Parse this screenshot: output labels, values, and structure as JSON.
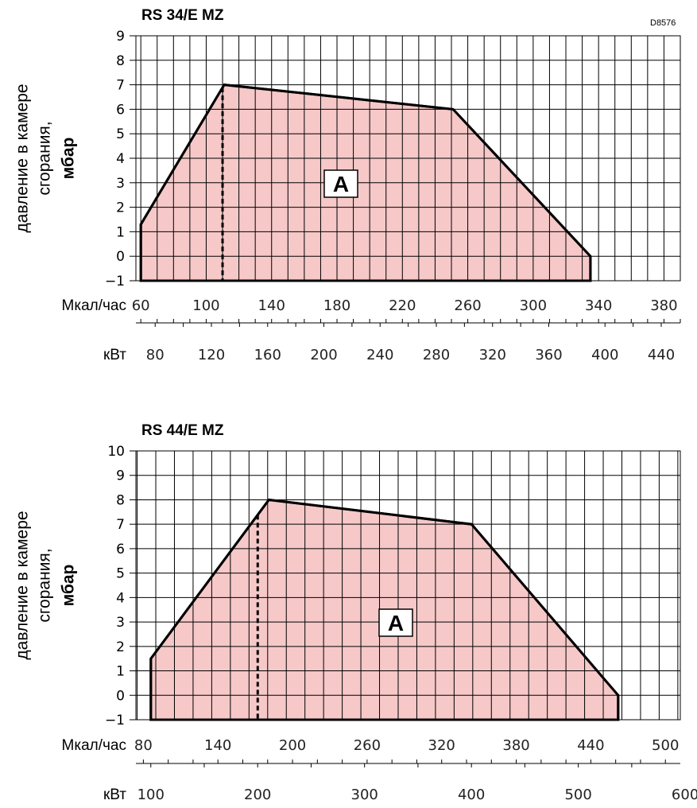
{
  "code": "D8576",
  "chart_data": [
    {
      "type": "area",
      "title": "RS 34/E MZ",
      "ylabel_lines": [
        "давление в камере",
        "сгорания,"
      ],
      "ylabel_bold": "мбар",
      "ylim": [
        -1,
        9
      ],
      "yticks": [
        "9",
        "8",
        "7",
        "6",
        "5",
        "4",
        "3",
        "2",
        "1",
        "0",
        "−1"
      ],
      "x_unit_top": "Мкал/час",
      "x_unit_bottom": "кВт",
      "xlim_mcal": [
        57,
        390
      ],
      "xticks_mcal": [
        60,
        100,
        140,
        180,
        220,
        260,
        300,
        340,
        380
      ],
      "xticks_kw": [
        80,
        120,
        160,
        200,
        240,
        280,
        320,
        360,
        400,
        440
      ],
      "series": [
        {
          "x": [
            60,
            60,
            111,
            251,
            335,
            335
          ],
          "y": [
            -1,
            1.3,
            7,
            6,
            0,
            -1
          ]
        }
      ],
      "dashed_x": 110,
      "region_label": "A",
      "grid": true
    },
    {
      "type": "area",
      "title": "RS 44/E MZ",
      "ylabel_lines": [
        "давление в камере",
        "сгорания,"
      ],
      "ylabel_bold": "мбар",
      "ylim": [
        -1,
        10
      ],
      "yticks": [
        "10",
        "9",
        "8",
        "7",
        "6",
        "5",
        "4",
        "3",
        "2",
        "1",
        "0",
        "−1"
      ],
      "x_unit_top": "Мкал/час",
      "x_unit_bottom": "кВт",
      "xlim_mcal": [
        74,
        512
      ],
      "xticks_mcal": [
        80,
        140,
        200,
        260,
        320,
        380,
        440,
        500
      ],
      "xticks_kw": [
        100,
        200,
        300,
        400,
        500,
        600
      ],
      "series": [
        {
          "x": [
            86,
            86,
            181,
            344,
            462,
            462
          ],
          "y": [
            -1,
            1.5,
            8,
            7,
            0,
            -1
          ]
        }
      ],
      "dashed_x": 172,
      "region_label": "A",
      "grid": true
    }
  ]
}
